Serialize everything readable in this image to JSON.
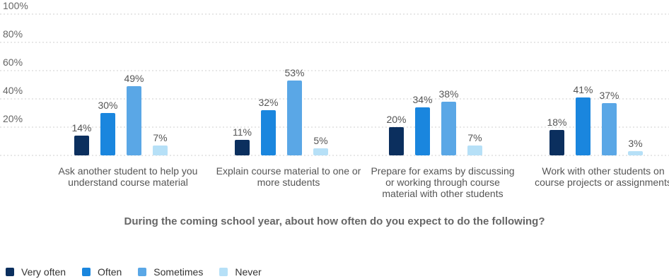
{
  "chart_data": {
    "type": "bar",
    "title": "During the coming school year, about how often do you expect to do the following?",
    "categories": [
      "Ask another student to help you understand course material",
      "Explain course material to one or more students",
      "Prepare for exams by discussing or working through course material with other students",
      "Work with other students on course projects or assignments"
    ],
    "category_lines": [
      [
        "Ask another student to help you",
        "understand course material"
      ],
      [
        "Explain course material to one or",
        "more students"
      ],
      [
        "Prepare for exams by discussing",
        "or working through course",
        "material with other students"
      ],
      [
        "Work with other students on",
        "course projects or assignments"
      ]
    ],
    "series": [
      {
        "name": "Very often",
        "color": "#0b2f5e",
        "values": [
          14,
          11,
          20,
          18
        ]
      },
      {
        "name": "Often",
        "color": "#1a86de",
        "values": [
          30,
          32,
          34,
          41
        ]
      },
      {
        "name": "Sometimes",
        "color": "#5aa7e6",
        "values": [
          49,
          53,
          38,
          37
        ]
      },
      {
        "name": "Never",
        "color": "#b6e0f7",
        "values": [
          7,
          5,
          7,
          3
        ]
      }
    ],
    "y_ticks": [
      "20%",
      "40%",
      "60%",
      "80%",
      "100%"
    ],
    "ylim": [
      0,
      100
    ],
    "grid": true,
    "legend": "bottom-left"
  }
}
